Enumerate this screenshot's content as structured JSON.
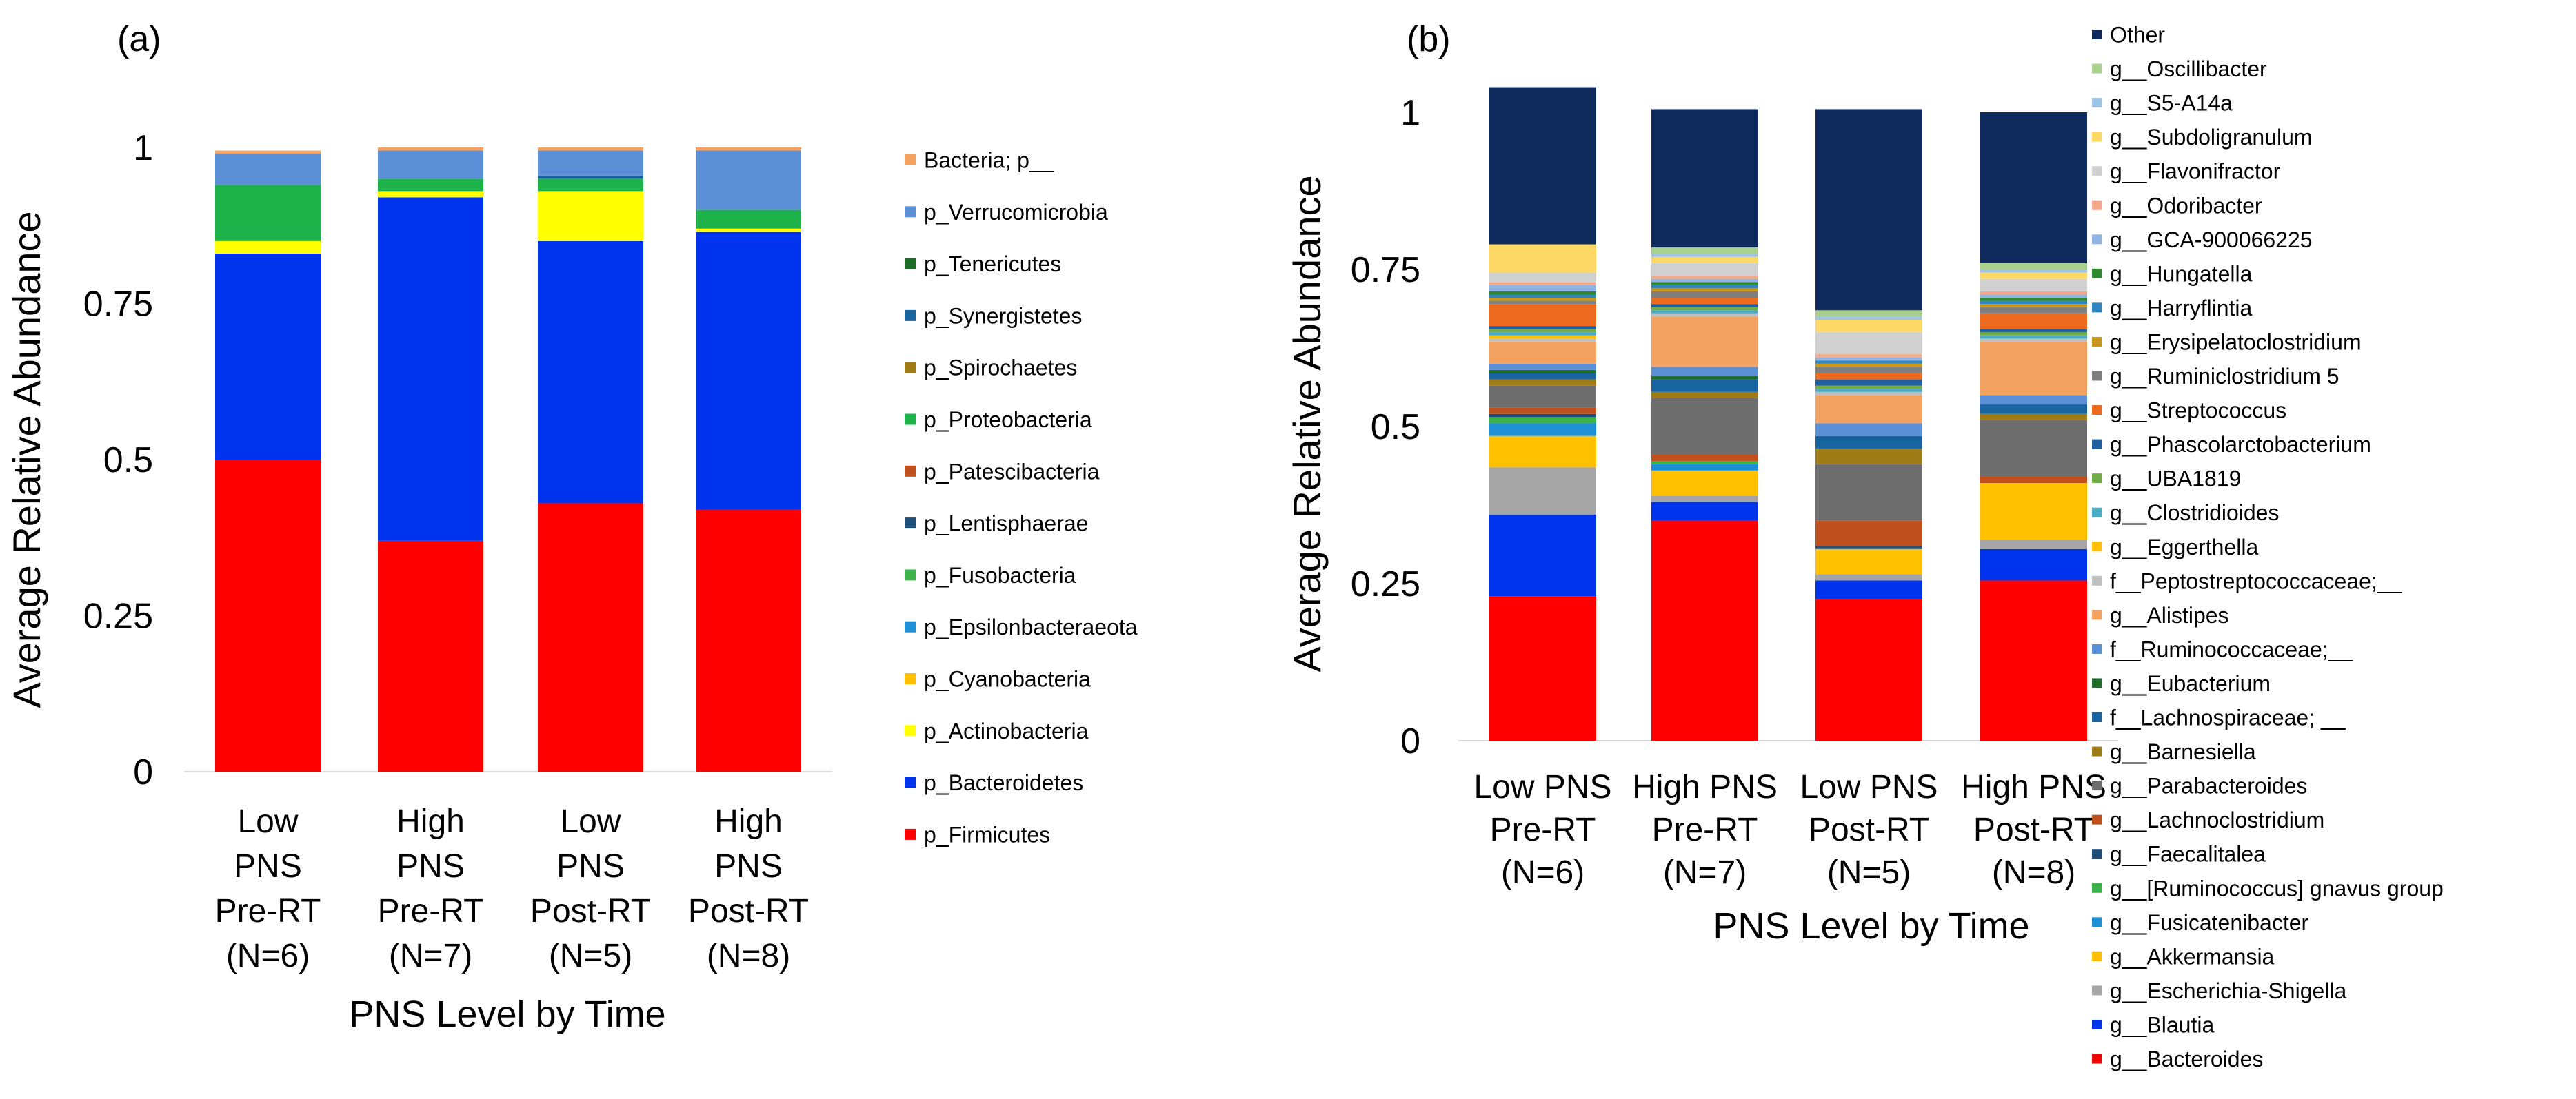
{
  "chart_data": [
    {
      "panel": "(a)",
      "type": "bar",
      "stacked": true,
      "xlabel": "PNS Level by Time",
      "ylabel": "Average Relative Abundance",
      "ylim": [
        0,
        1
      ],
      "ytick_labels": [
        "0",
        "0.25",
        "0.5",
        "0.75",
        "1"
      ],
      "categories": [
        [
          "Low",
          "PNS",
          "Pre-RT",
          "(N=6)"
        ],
        [
          "High",
          "PNS",
          "Pre-RT",
          "(N=7)"
        ],
        [
          "Low",
          "PNS",
          "Post-RT",
          "(N=5)"
        ],
        [
          "High",
          "PNS",
          "Post-RT",
          "(N=8)"
        ]
      ],
      "legend_position": "right",
      "series": [
        {
          "name": "p_Firmicutes",
          "color": "#ff0000",
          "values": [
            0.5,
            0.37,
            0.43,
            0.42
          ]
        },
        {
          "name": "p_Bacteroidetes",
          "color": "#0033ee",
          "values": [
            0.33,
            0.55,
            0.42,
            0.445
          ]
        },
        {
          "name": "p_Actinobacteria",
          "color": "#ffff00",
          "values": [
            0.02,
            0.01,
            0.08,
            0.005
          ]
        },
        {
          "name": "p_Cyanobacteria",
          "color": "#ffc000",
          "values": [
            0.0,
            0.0,
            0.0,
            0.0
          ]
        },
        {
          "name": "p_Epsilonbacteraeota",
          "color": "#1e90d6",
          "values": [
            0.0,
            0.0,
            0.0,
            0.0
          ]
        },
        {
          "name": "p_Fusobacteria",
          "color": "#3cb44b",
          "values": [
            0.0,
            0.0,
            0.0,
            0.0
          ]
        },
        {
          "name": "p_Lentisphaerae",
          "color": "#1f4e79",
          "values": [
            0.0,
            0.0,
            0.0,
            0.0
          ]
        },
        {
          "name": "p_Patescibacteria",
          "color": "#c0501e",
          "values": [
            0.0,
            0.0,
            0.0,
            0.0
          ]
        },
        {
          "name": "p_Proteobacteria",
          "color": "#1db34a",
          "values": [
            0.09,
            0.02,
            0.02,
            0.03
          ]
        },
        {
          "name": "p_Spirochaetes",
          "color": "#a07c16",
          "values": [
            0.0,
            0.0,
            0.0,
            0.0
          ]
        },
        {
          "name": "p_Synergistetes",
          "color": "#1764a0",
          "values": [
            0.0,
            0.0,
            0.005,
            0.0
          ]
        },
        {
          "name": "p_Tenericutes",
          "color": "#1e6e2a",
          "values": [
            0.0,
            0.0,
            0.0,
            0.0
          ]
        },
        {
          "name": "p_Verrucomicrobia",
          "color": "#5b8fd6",
          "values": [
            0.05,
            0.045,
            0.04,
            0.095
          ]
        },
        {
          "name": "Bacteria; p__",
          "color": "#f4a261",
          "values": [
            0.005,
            0.005,
            0.005,
            0.005
          ]
        }
      ]
    },
    {
      "panel": "(b)",
      "type": "bar",
      "stacked": true,
      "xlabel": "PNS Level by Time",
      "ylabel": "Average Relative Abundance",
      "ylim": [
        0,
        1
      ],
      "ytick_labels": [
        "0",
        "0.25",
        "0.5",
        "0.75",
        "1"
      ],
      "categories": [
        [
          "Low PNS",
          "Pre-RT",
          "(N=6)"
        ],
        [
          "High PNS",
          "Pre-RT",
          "(N=7)"
        ],
        [
          "Low PNS",
          "Post-RT",
          "(N=5)"
        ],
        [
          "High PNS",
          "Post-RT",
          "(N=8)"
        ]
      ],
      "legend_position": "right",
      "series": [
        {
          "name": "g__Bacteroides",
          "color": "#ff0000",
          "values": [
            0.23,
            0.35,
            0.225,
            0.255
          ]
        },
        {
          "name": "g__Blautia",
          "color": "#0033ee",
          "values": [
            0.13,
            0.03,
            0.03,
            0.05
          ]
        },
        {
          "name": "g__Escherichia-Shigella",
          "color": "#a5a5a5",
          "values": [
            0.075,
            0.01,
            0.01,
            0.015
          ]
        },
        {
          "name": "g__Akkermansia",
          "color": "#ffc000",
          "values": [
            0.05,
            0.04,
            0.04,
            0.09
          ]
        },
        {
          "name": "g__Fusicatenibacter",
          "color": "#1e90d6",
          "values": [
            0.02,
            0.01,
            0.0,
            0.0
          ]
        },
        {
          "name": "g__[Ruminococcus] gnavus group",
          "color": "#3cb44b",
          "values": [
            0.01,
            0.005,
            0.0,
            0.0
          ]
        },
        {
          "name": "g__Faecalitalea",
          "color": "#1f4e79",
          "values": [
            0.005,
            0.0,
            0.005,
            0.0
          ]
        },
        {
          "name": "g__Lachnoclostridium",
          "color": "#c0501e",
          "values": [
            0.01,
            0.01,
            0.04,
            0.01
          ]
        },
        {
          "name": "g__Parabacteroides",
          "color": "#6e6e6e",
          "values": [
            0.035,
            0.09,
            0.09,
            0.09
          ]
        },
        {
          "name": "g__Barnesiella",
          "color": "#a07c16",
          "values": [
            0.01,
            0.01,
            0.025,
            0.01
          ]
        },
        {
          "name": "f__Lachnospiraceae; __",
          "color": "#1764a0",
          "values": [
            0.01,
            0.02,
            0.02,
            0.015
          ]
        },
        {
          "name": "g__Eubacterium",
          "color": "#1e6e2a",
          "values": [
            0.005,
            0.005,
            0.0,
            0.0
          ]
        },
        {
          "name": "f__Ruminococcaceae;__",
          "color": "#5b8fd6",
          "values": [
            0.01,
            0.015,
            0.02,
            0.015
          ]
        },
        {
          "name": "g__Alistipes",
          "color": "#f4a261",
          "values": [
            0.035,
            0.08,
            0.045,
            0.085
          ]
        },
        {
          "name": "f__Peptostreptococcaceae;__",
          "color": "#bfbfbf",
          "values": [
            0.005,
            0.005,
            0.005,
            0.005
          ]
        },
        {
          "name": "g__Eggerthella",
          "color": "#ffc000",
          "values": [
            0.005,
            0.0,
            0.0,
            0.0
          ]
        },
        {
          "name": "g__Clostridioides",
          "color": "#4bacc6",
          "values": [
            0.005,
            0.005,
            0.005,
            0.005
          ]
        },
        {
          "name": "g__UBA1819",
          "color": "#70ad47",
          "values": [
            0.005,
            0.005,
            0.005,
            0.005
          ]
        },
        {
          "name": "g__Phascolarctobacterium",
          "color": "#1f5fa0",
          "values": [
            0.005,
            0.005,
            0.01,
            0.005
          ]
        },
        {
          "name": "g__Streptococcus",
          "color": "#ed6a1e",
          "values": [
            0.035,
            0.01,
            0.01,
            0.025
          ]
        },
        {
          "name": "g__Ruminiclostridium 5",
          "color": "#7f7f7f",
          "values": [
            0.005,
            0.01,
            0.01,
            0.01
          ]
        },
        {
          "name": "g__Erysipelatoclostridium",
          "color": "#c9971c",
          "values": [
            0.005,
            0.005,
            0.005,
            0.005
          ]
        },
        {
          "name": "g__Harryflintia",
          "color": "#2e86c1",
          "values": [
            0.005,
            0.005,
            0.005,
            0.005
          ]
        },
        {
          "name": "g__Hungatella",
          "color": "#2f8a2f",
          "values": [
            0.005,
            0.005,
            0.0,
            0.005
          ]
        },
        {
          "name": "g__GCA-900066225",
          "color": "#8eb4e3",
          "values": [
            0.01,
            0.005,
            0.005,
            0.005
          ]
        },
        {
          "name": "g__Odoribacter",
          "color": "#f5a98a",
          "values": [
            0.005,
            0.005,
            0.005,
            0.005
          ]
        },
        {
          "name": "g__Flavonifractor",
          "color": "#d0d0d0",
          "values": [
            0.015,
            0.02,
            0.035,
            0.02
          ]
        },
        {
          "name": "g__Subdoligranulum",
          "color": "#ffd966",
          "values": [
            0.045,
            0.01,
            0.02,
            0.01
          ]
        },
        {
          "name": "g__S5-A14a",
          "color": "#9dc3e6",
          "values": [
            0.0,
            0.005,
            0.005,
            0.005
          ]
        },
        {
          "name": "g__Oscillibacter",
          "color": "#a9d18e",
          "values": [
            0.0,
            0.01,
            0.01,
            0.01
          ]
        },
        {
          "name": "Other",
          "color": "#0e2a5c",
          "values": [
            0.25,
            0.22,
            0.32,
            0.24
          ]
        }
      ]
    }
  ]
}
